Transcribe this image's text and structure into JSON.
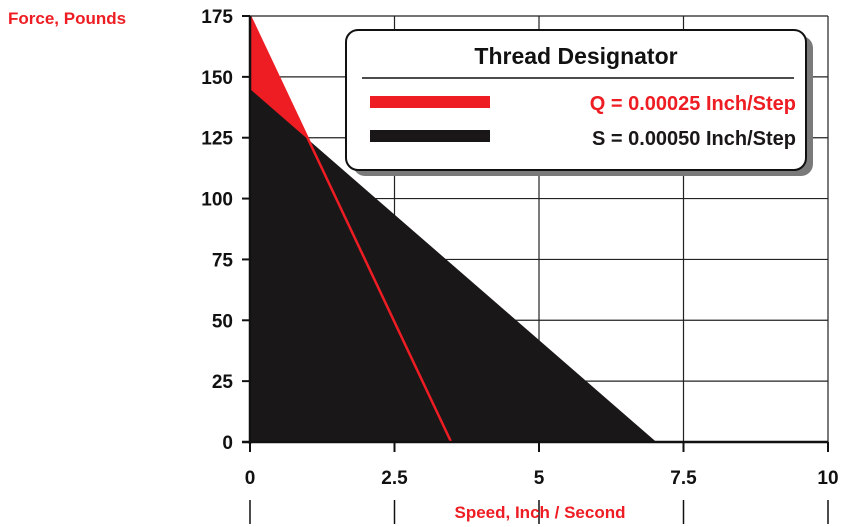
{
  "chart_data": {
    "type": "area",
    "ylabel": "Force, Pounds",
    "xlabel": "Speed, Inch / Second",
    "xlim": [
      0,
      10
    ],
    "ylim": [
      0,
      175
    ],
    "x_ticks": [
      "0",
      "2.5",
      "5",
      "7.5",
      "10"
    ],
    "y_ticks": [
      "0",
      "25",
      "50",
      "75",
      "100",
      "125",
      "150",
      "175"
    ],
    "grid": true,
    "legend": {
      "title": "Thread Designator",
      "placement": "top-right"
    },
    "series": [
      {
        "name": "S = 0.00050 Inch/Step",
        "color": "#1a1718",
        "points": [
          [
            0,
            145
          ],
          [
            7.03,
            0
          ]
        ]
      },
      {
        "name": "Q = 0.00025 Inch/Step",
        "color": "#ee1d23",
        "points": [
          [
            0,
            175
          ],
          [
            3.48,
            0
          ]
        ]
      }
    ],
    "colors": {
      "label_red": "#ee1d23",
      "black_fill": "#1a1718",
      "grid": "#222222"
    }
  }
}
